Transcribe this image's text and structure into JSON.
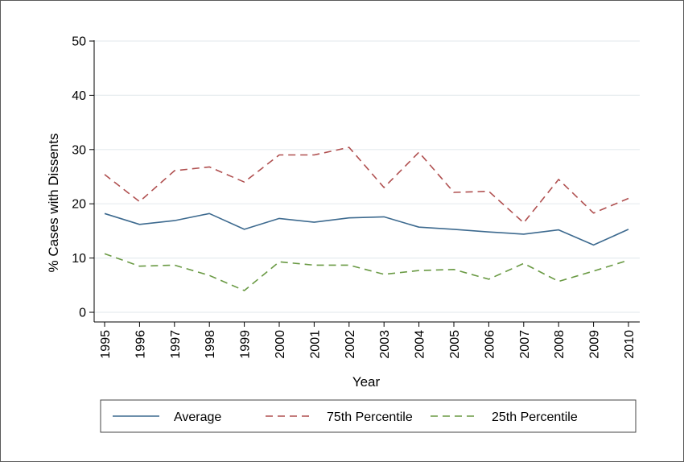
{
  "chart_data": {
    "type": "line",
    "title": "",
    "xlabel": "Year",
    "ylabel": "% Cases with Dissents",
    "x": [
      "1995",
      "1996",
      "1997",
      "1998",
      "1999",
      "2000",
      "2001",
      "2002",
      "2003",
      "2004",
      "2005",
      "2006",
      "2007",
      "2008",
      "2009",
      "2010"
    ],
    "ylim": [
      0,
      50
    ],
    "yticks": [
      0,
      10,
      20,
      30,
      40,
      50
    ],
    "grid": true,
    "legend_position": "bottom",
    "series": [
      {
        "name": "Average",
        "style": "solid",
        "color": "#3d6a8f",
        "values": [
          18.2,
          16.2,
          16.9,
          18.2,
          15.3,
          17.3,
          16.6,
          17.4,
          17.6,
          15.7,
          15.3,
          14.8,
          14.4,
          15.2,
          12.4,
          15.3
        ]
      },
      {
        "name": "75th Percentile",
        "style": "dashed",
        "color": "#b05050",
        "values": [
          25.4,
          20.4,
          26.1,
          26.8,
          24.0,
          29.0,
          29.0,
          30.4,
          23.0,
          29.5,
          22.1,
          22.3,
          16.5,
          24.5,
          18.3,
          21.0
        ]
      },
      {
        "name": "25th Percentile",
        "style": "dashed",
        "color": "#6a9a44",
        "values": [
          10.8,
          8.5,
          8.7,
          6.8,
          4.0,
          9.3,
          8.7,
          8.7,
          7.0,
          7.7,
          7.9,
          6.1,
          9.0,
          5.7,
          7.6,
          9.6
        ]
      }
    ]
  }
}
